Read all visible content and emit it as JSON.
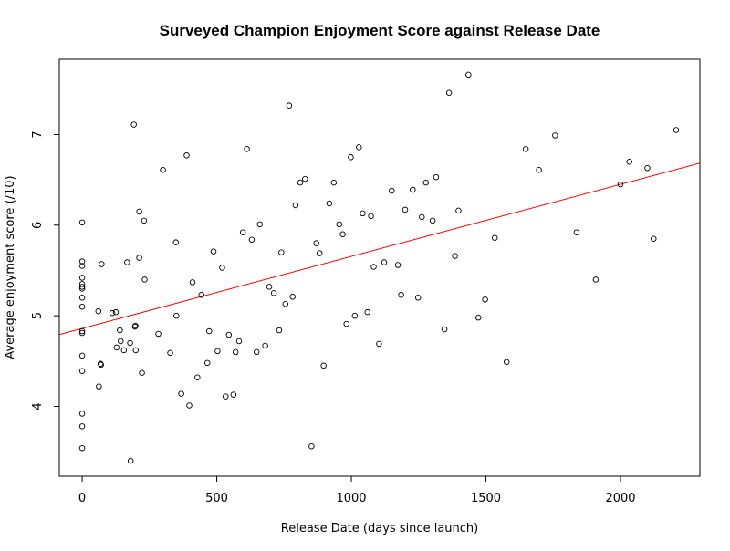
{
  "chart_data": {
    "type": "scatter",
    "title": "Surveyed Champion Enjoyment Score against Release Date",
    "xlabel": "Release Date (days since launch)",
    "ylabel": "Average enjoyment score (/10)",
    "xlim": [
      -85,
      2295
    ],
    "ylim": [
      3.23,
      7.83
    ],
    "xticks": [
      0,
      500,
      1000,
      1500,
      2000
    ],
    "yticks": [
      4,
      5,
      6,
      7
    ],
    "grid": false,
    "legend": "none",
    "point_color": "#000000",
    "regression_line": {
      "color": "#ff0000",
      "intercept": 4.86,
      "slope": 0.000795
    },
    "points": [
      {
        "x": 0,
        "y": 6.03
      },
      {
        "x": 0,
        "y": 5.6
      },
      {
        "x": 0,
        "y": 5.55
      },
      {
        "x": 0,
        "y": 5.42
      },
      {
        "x": 0,
        "y": 5.35
      },
      {
        "x": 0,
        "y": 5.32
      },
      {
        "x": 0,
        "y": 5.3
      },
      {
        "x": 0,
        "y": 5.2
      },
      {
        "x": 0,
        "y": 5.1
      },
      {
        "x": 0,
        "y": 4.83
      },
      {
        "x": 0,
        "y": 4.81
      },
      {
        "x": 0,
        "y": 4.56
      },
      {
        "x": 0,
        "y": 4.39
      },
      {
        "x": 0,
        "y": 3.92
      },
      {
        "x": 0,
        "y": 3.78
      },
      {
        "x": 0,
        "y": 3.54
      },
      {
        "x": 60,
        "y": 5.05
      },
      {
        "x": 62,
        "y": 4.22
      },
      {
        "x": 68,
        "y": 4.47
      },
      {
        "x": 70,
        "y": 4.46
      },
      {
        "x": 72,
        "y": 5.57
      },
      {
        "x": 112,
        "y": 5.03
      },
      {
        "x": 125,
        "y": 5.04
      },
      {
        "x": 128,
        "y": 4.65
      },
      {
        "x": 140,
        "y": 4.84
      },
      {
        "x": 143,
        "y": 4.72
      },
      {
        "x": 155,
        "y": 4.62
      },
      {
        "x": 167,
        "y": 5.59
      },
      {
        "x": 178,
        "y": 4.7
      },
      {
        "x": 180,
        "y": 3.4
      },
      {
        "x": 192,
        "y": 7.11
      },
      {
        "x": 196,
        "y": 4.88
      },
      {
        "x": 198,
        "y": 4.89
      },
      {
        "x": 199,
        "y": 4.62
      },
      {
        "x": 212,
        "y": 5.64
      },
      {
        "x": 212,
        "y": 6.15
      },
      {
        "x": 222,
        "y": 4.37
      },
      {
        "x": 230,
        "y": 6.05
      },
      {
        "x": 232,
        "y": 5.4
      },
      {
        "x": 283,
        "y": 4.8
      },
      {
        "x": 300,
        "y": 6.61
      },
      {
        "x": 327,
        "y": 4.59
      },
      {
        "x": 348,
        "y": 5.81
      },
      {
        "x": 350,
        "y": 5.0
      },
      {
        "x": 368,
        "y": 4.14
      },
      {
        "x": 388,
        "y": 6.77
      },
      {
        "x": 398,
        "y": 4.01
      },
      {
        "x": 410,
        "y": 5.37
      },
      {
        "x": 428,
        "y": 4.32
      },
      {
        "x": 443,
        "y": 5.23
      },
      {
        "x": 465,
        "y": 4.48
      },
      {
        "x": 472,
        "y": 4.83
      },
      {
        "x": 488,
        "y": 5.71
      },
      {
        "x": 503,
        "y": 4.61
      },
      {
        "x": 520,
        "y": 5.53
      },
      {
        "x": 533,
        "y": 4.11
      },
      {
        "x": 545,
        "y": 4.79
      },
      {
        "x": 562,
        "y": 4.13
      },
      {
        "x": 570,
        "y": 4.6
      },
      {
        "x": 583,
        "y": 4.72
      },
      {
        "x": 597,
        "y": 5.92
      },
      {
        "x": 612,
        "y": 6.84
      },
      {
        "x": 630,
        "y": 5.84
      },
      {
        "x": 648,
        "y": 4.6
      },
      {
        "x": 660,
        "y": 6.01
      },
      {
        "x": 680,
        "y": 4.67
      },
      {
        "x": 695,
        "y": 5.32
      },
      {
        "x": 712,
        "y": 5.25
      },
      {
        "x": 732,
        "y": 4.84
      },
      {
        "x": 740,
        "y": 5.7
      },
      {
        "x": 755,
        "y": 5.13
      },
      {
        "x": 769,
        "y": 7.32
      },
      {
        "x": 782,
        "y": 5.21
      },
      {
        "x": 793,
        "y": 6.22
      },
      {
        "x": 810,
        "y": 6.47
      },
      {
        "x": 828,
        "y": 6.51
      },
      {
        "x": 852,
        "y": 3.56
      },
      {
        "x": 870,
        "y": 5.8
      },
      {
        "x": 882,
        "y": 5.69
      },
      {
        "x": 897,
        "y": 4.45
      },
      {
        "x": 918,
        "y": 6.24
      },
      {
        "x": 935,
        "y": 6.47
      },
      {
        "x": 955,
        "y": 6.01
      },
      {
        "x": 968,
        "y": 5.9
      },
      {
        "x": 982,
        "y": 4.91
      },
      {
        "x": 998,
        "y": 6.75
      },
      {
        "x": 1013,
        "y": 5.0
      },
      {
        "x": 1028,
        "y": 6.86
      },
      {
        "x": 1042,
        "y": 6.13
      },
      {
        "x": 1060,
        "y": 5.04
      },
      {
        "x": 1073,
        "y": 6.1
      },
      {
        "x": 1083,
        "y": 5.54
      },
      {
        "x": 1103,
        "y": 4.69
      },
      {
        "x": 1122,
        "y": 5.59
      },
      {
        "x": 1150,
        "y": 6.38
      },
      {
        "x": 1173,
        "y": 5.56
      },
      {
        "x": 1185,
        "y": 5.23
      },
      {
        "x": 1200,
        "y": 6.17
      },
      {
        "x": 1228,
        "y": 6.39
      },
      {
        "x": 1248,
        "y": 5.2
      },
      {
        "x": 1262,
        "y": 6.09
      },
      {
        "x": 1277,
        "y": 6.47
      },
      {
        "x": 1302,
        "y": 6.05
      },
      {
        "x": 1315,
        "y": 6.53
      },
      {
        "x": 1346,
        "y": 4.85
      },
      {
        "x": 1363,
        "y": 7.46
      },
      {
        "x": 1385,
        "y": 5.66
      },
      {
        "x": 1398,
        "y": 6.16
      },
      {
        "x": 1435,
        "y": 7.66
      },
      {
        "x": 1472,
        "y": 4.98
      },
      {
        "x": 1497,
        "y": 5.18
      },
      {
        "x": 1533,
        "y": 5.86
      },
      {
        "x": 1577,
        "y": 4.49
      },
      {
        "x": 1648,
        "y": 6.84
      },
      {
        "x": 1697,
        "y": 6.61
      },
      {
        "x": 1757,
        "y": 6.99
      },
      {
        "x": 1837,
        "y": 5.92
      },
      {
        "x": 1908,
        "y": 5.4
      },
      {
        "x": 2000,
        "y": 6.45
      },
      {
        "x": 2033,
        "y": 6.7
      },
      {
        "x": 2100,
        "y": 6.63
      },
      {
        "x": 2123,
        "y": 5.85
      },
      {
        "x": 2207,
        "y": 7.05
      }
    ]
  }
}
